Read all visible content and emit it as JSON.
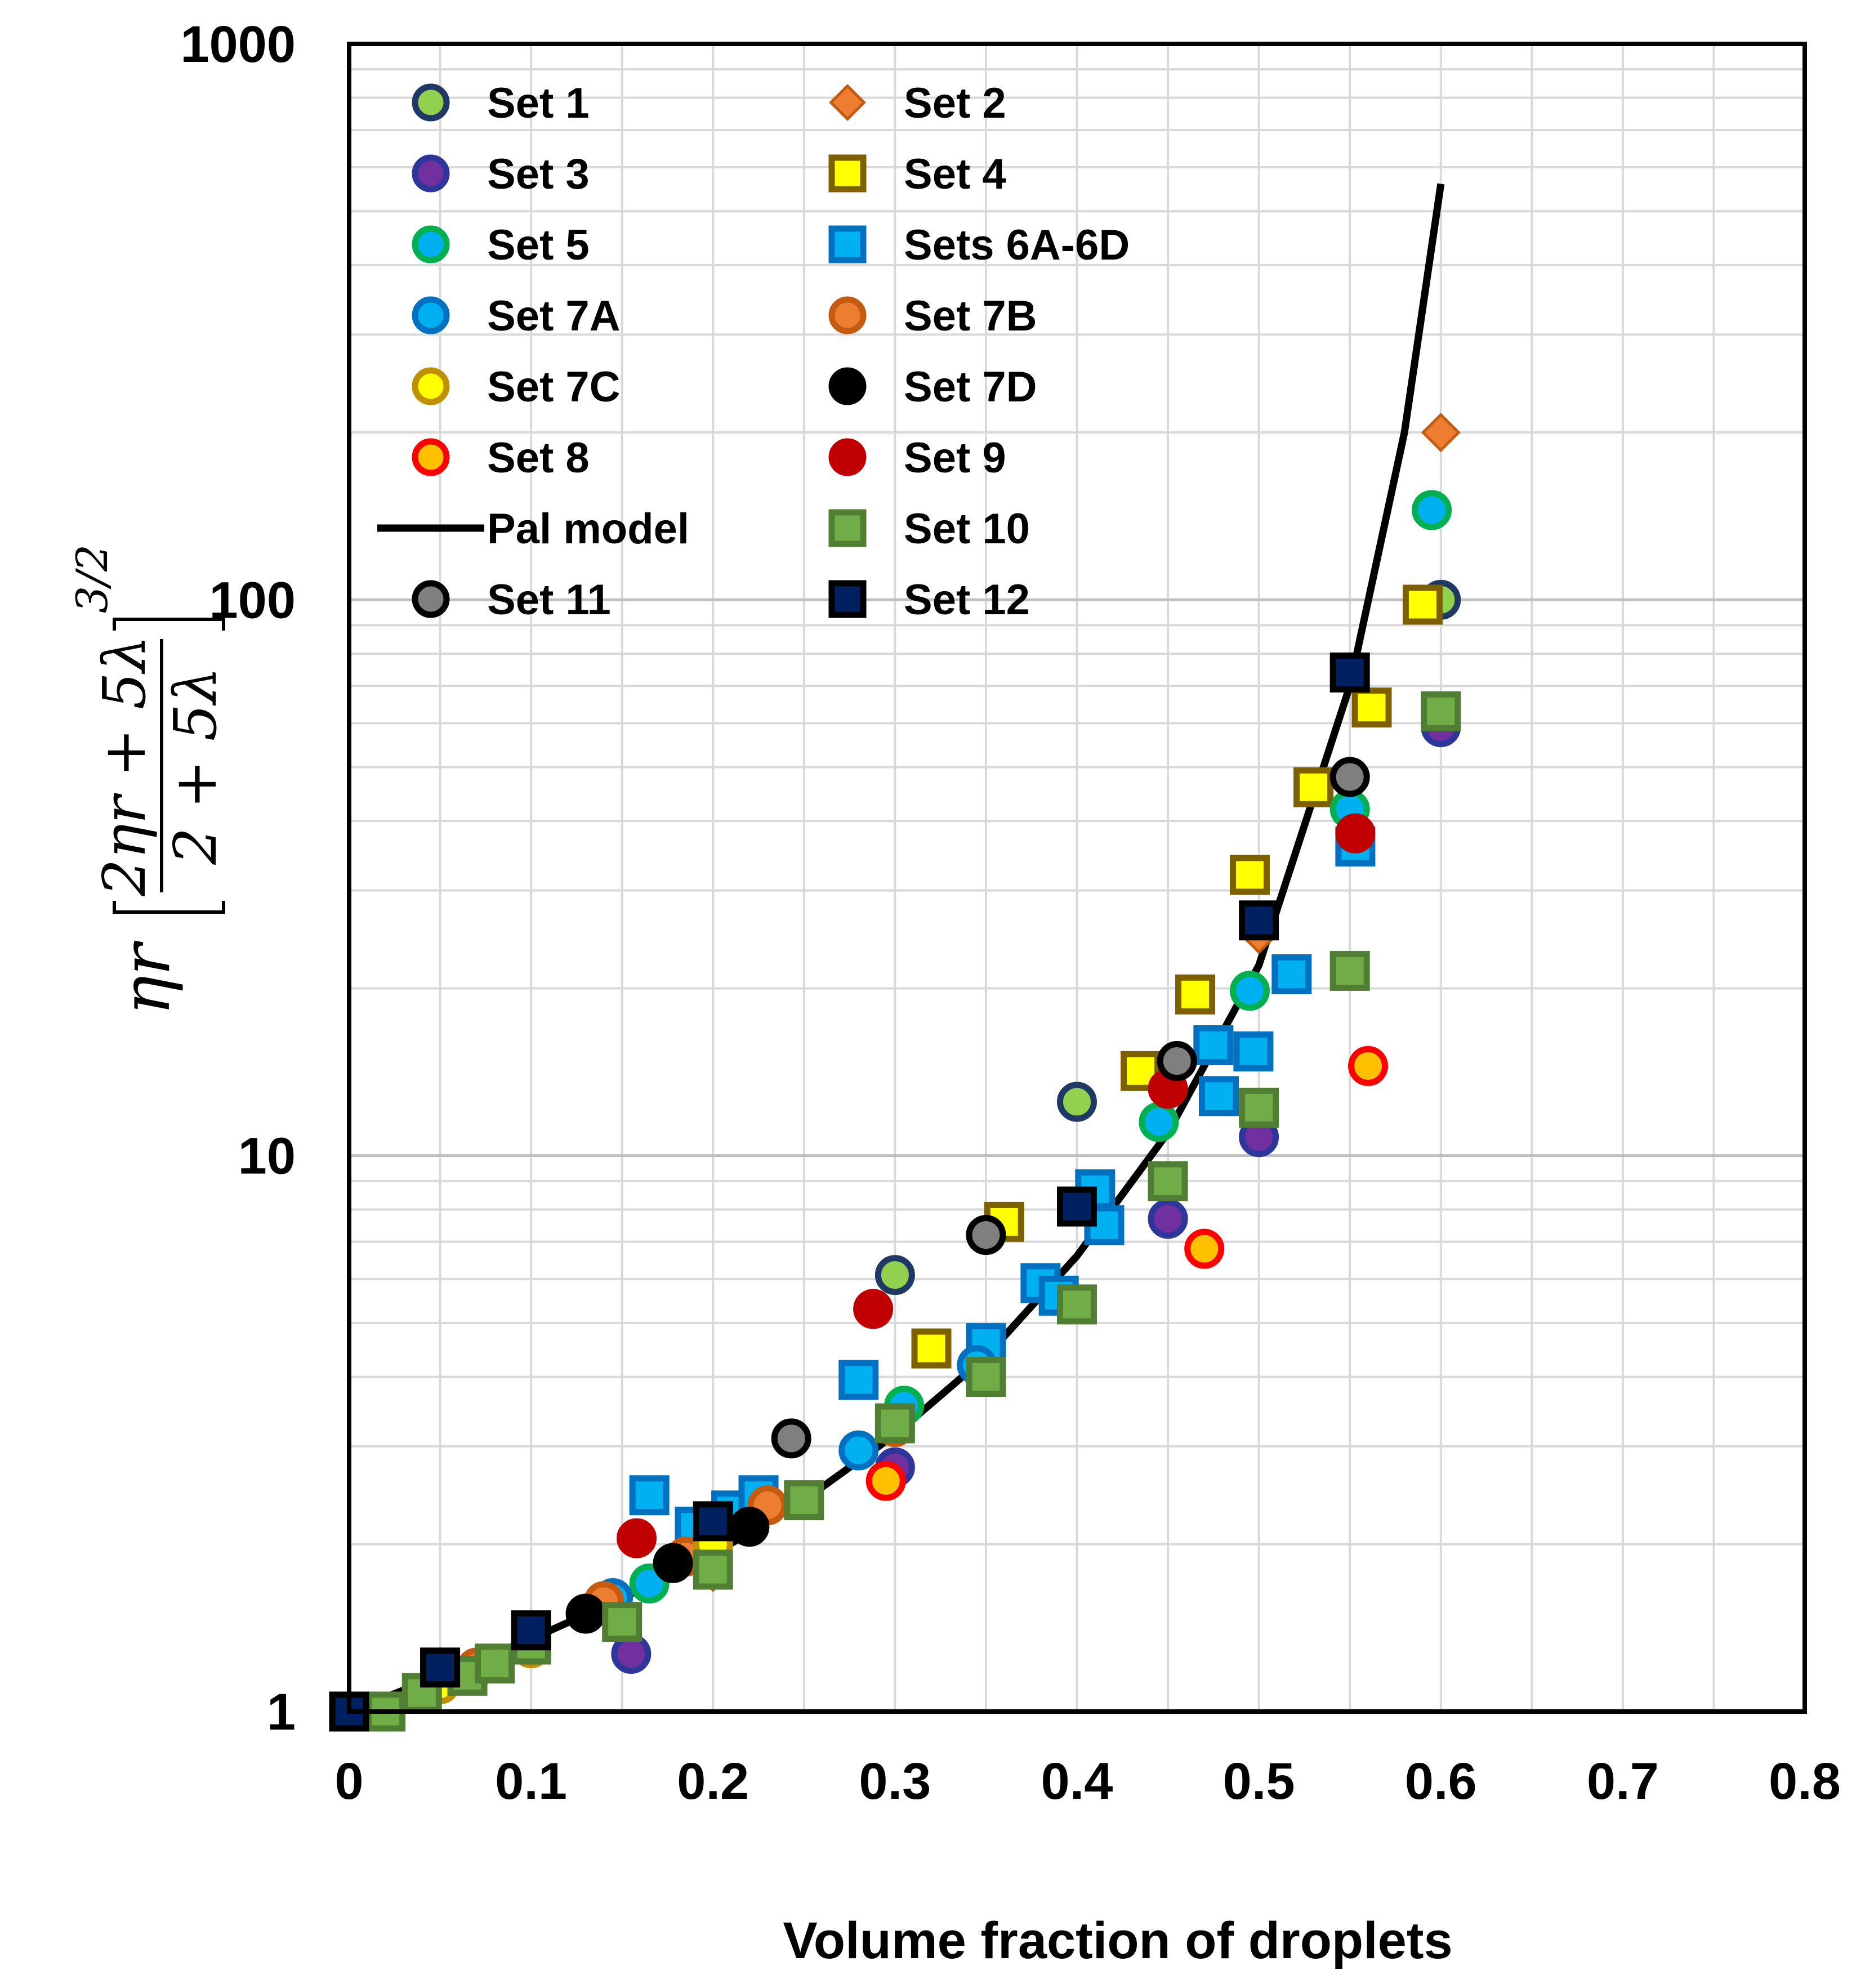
{
  "chart_data": {
    "type": "scatter",
    "title": "",
    "xlabel": "Volume fraction of droplets",
    "ylabel": {
      "prefix": "ηr",
      "numerator": "2ηr + 5λ",
      "denominator": "2 + 5λ",
      "exponent": "3/2"
    },
    "xlim": [
      0,
      0.8
    ],
    "ylim": [
      1,
      1000
    ],
    "yscale": "log",
    "grid": true,
    "legend_position": "top-left",
    "x_ticks": [
      "0",
      "0.1",
      "0.2",
      "0.3",
      "0.4",
      "0.5",
      "0.6",
      "0.7",
      "0.8"
    ],
    "y_ticks": [
      "1",
      "10",
      "100",
      "1000"
    ],
    "series": [
      {
        "name": "Set 1",
        "marker": "circle",
        "fill": "#92d050",
        "stroke": "#1f3864",
        "points": [
          [
            0.3,
            6.1
          ],
          [
            0.4,
            12.5
          ],
          [
            0.6,
            100
          ]
        ]
      },
      {
        "name": "Set 2",
        "marker": "diamond",
        "fill": "#ed7d31",
        "stroke": "#c55a11",
        "points": [
          [
            0.2,
            1.78
          ],
          [
            0.4,
            8.1
          ],
          [
            0.5,
            25
          ],
          [
            0.6,
            200
          ]
        ]
      },
      {
        "name": "Set 3",
        "marker": "circle",
        "fill": "#7030a0",
        "stroke": "#2f3699",
        "points": [
          [
            0.155,
            1.27
          ],
          [
            0.3,
            2.75
          ],
          [
            0.45,
            7.7
          ],
          [
            0.5,
            10.8
          ],
          [
            0.6,
            59
          ]
        ]
      },
      {
        "name": "Set 4",
        "marker": "square",
        "fill": "#ffff00",
        "stroke": "#7f6000",
        "points": [
          [
            0.32,
            4.5
          ],
          [
            0.36,
            7.6
          ],
          [
            0.435,
            14.2
          ],
          [
            0.465,
            19.5
          ],
          [
            0.495,
            32
          ],
          [
            0.53,
            46
          ],
          [
            0.562,
            64
          ],
          [
            0.59,
            98
          ]
        ]
      },
      {
        "name": "Set 5",
        "marker": "circle",
        "fill": "#00b0f0",
        "stroke": "#00b050",
        "points": [
          [
            0.165,
            1.7
          ],
          [
            0.305,
            3.55
          ],
          [
            0.445,
            11.5
          ],
          [
            0.495,
            19.8
          ],
          [
            0.55,
            42
          ],
          [
            0.595,
            145
          ]
        ]
      },
      {
        "name": "Sets 6A-6D",
        "marker": "square",
        "fill": "#00b0f0",
        "stroke": "#0070c0",
        "points": [
          [
            0.165,
            2.45
          ],
          [
            0.19,
            2.15
          ],
          [
            0.21,
            2.3
          ],
          [
            0.225,
            2.45
          ],
          [
            0.28,
            3.95
          ],
          [
            0.35,
            4.6
          ],
          [
            0.38,
            5.9
          ],
          [
            0.39,
            5.6
          ],
          [
            0.41,
            8.7
          ],
          [
            0.415,
            7.5
          ],
          [
            0.475,
            15.8
          ],
          [
            0.478,
            12.8
          ],
          [
            0.497,
            15.4
          ],
          [
            0.518,
            21.2
          ],
          [
            0.553,
            36
          ]
        ]
      },
      {
        "name": "Set 7A",
        "marker": "circle",
        "fill": "#00b0f0",
        "stroke": "#0070c0",
        "points": [
          [
            0.145,
            1.6
          ],
          [
            0.28,
            2.95
          ],
          [
            0.345,
            4.2
          ]
        ]
      },
      {
        "name": "Set 7B",
        "marker": "circle",
        "fill": "#ed7d31",
        "stroke": "#c55a11",
        "points": [
          [
            0.07,
            1.2
          ],
          [
            0.14,
            1.58
          ],
          [
            0.185,
            1.9
          ],
          [
            0.23,
            2.35
          ],
          [
            0.3,
            3.25
          ]
        ]
      },
      {
        "name": "Set 7C",
        "marker": "circle",
        "fill": "#ffff00",
        "stroke": "#bf9000",
        "points": [
          [
            0.05,
            1.12
          ],
          [
            0.1,
            1.3
          ],
          [
            0.2,
            2.0
          ]
        ]
      },
      {
        "name": "Set 7D",
        "marker": "circle",
        "fill": "#000000",
        "stroke": "#000000",
        "points": [
          [
            0.1,
            1.38
          ],
          [
            0.13,
            1.5
          ],
          [
            0.178,
            1.85
          ],
          [
            0.22,
            2.15
          ]
        ]
      },
      {
        "name": "Set 8",
        "marker": "circle",
        "fill": "#ffc000",
        "stroke": "#ff0000",
        "points": [
          [
            0.295,
            2.6
          ],
          [
            0.47,
            6.8
          ],
          [
            0.56,
            14.5
          ]
        ]
      },
      {
        "name": "Set 9",
        "marker": "circle",
        "fill": "#c00000",
        "stroke": "#c00000",
        "points": [
          [
            0.158,
            2.05
          ],
          [
            0.288,
            5.3
          ],
          [
            0.45,
            13.2
          ],
          [
            0.553,
            38
          ]
        ]
      },
      {
        "name": "Pal model",
        "marker": "line",
        "fill": "none",
        "stroke": "#000000",
        "points": [
          [
            0.0,
            1.0
          ],
          [
            0.05,
            1.16
          ],
          [
            0.1,
            1.35
          ],
          [
            0.15,
            1.6
          ],
          [
            0.2,
            1.92
          ],
          [
            0.25,
            2.4
          ],
          [
            0.3,
            3.15
          ],
          [
            0.35,
            4.35
          ],
          [
            0.4,
            6.6
          ],
          [
            0.45,
            11.0
          ],
          [
            0.5,
            22.0
          ],
          [
            0.55,
            70.0
          ],
          [
            0.58,
            200.0
          ],
          [
            0.6,
            560.0
          ]
        ]
      },
      {
        "name": "Set 10",
        "marker": "square",
        "fill": "#70ad47",
        "stroke": "#507e32",
        "points": [
          [
            0.02,
            1.0
          ],
          [
            0.04,
            1.08
          ],
          [
            0.065,
            1.16
          ],
          [
            0.08,
            1.22
          ],
          [
            0.1,
            1.32
          ],
          [
            0.15,
            1.45
          ],
          [
            0.2,
            1.8
          ],
          [
            0.25,
            2.4
          ],
          [
            0.3,
            3.3
          ],
          [
            0.35,
            4.0
          ],
          [
            0.4,
            5.4
          ],
          [
            0.45,
            9.0
          ],
          [
            0.5,
            12.2
          ],
          [
            0.55,
            21.5
          ],
          [
            0.6,
            63
          ]
        ]
      },
      {
        "name": "Set 11",
        "marker": "circle",
        "fill": "#7f7f7f",
        "stroke": "#000000",
        "points": [
          [
            0.243,
            3.1
          ],
          [
            0.35,
            7.2
          ],
          [
            0.455,
            14.8
          ],
          [
            0.55,
            48
          ]
        ]
      },
      {
        "name": "Set 12",
        "marker": "square",
        "fill": "#002060",
        "stroke": "#000000",
        "points": [
          [
            0.0,
            1.0
          ],
          [
            0.05,
            1.2
          ],
          [
            0.1,
            1.4
          ],
          [
            0.2,
            2.2
          ],
          [
            0.4,
            8.1
          ],
          [
            0.5,
            26.5
          ],
          [
            0.55,
            74
          ]
        ]
      }
    ]
  }
}
